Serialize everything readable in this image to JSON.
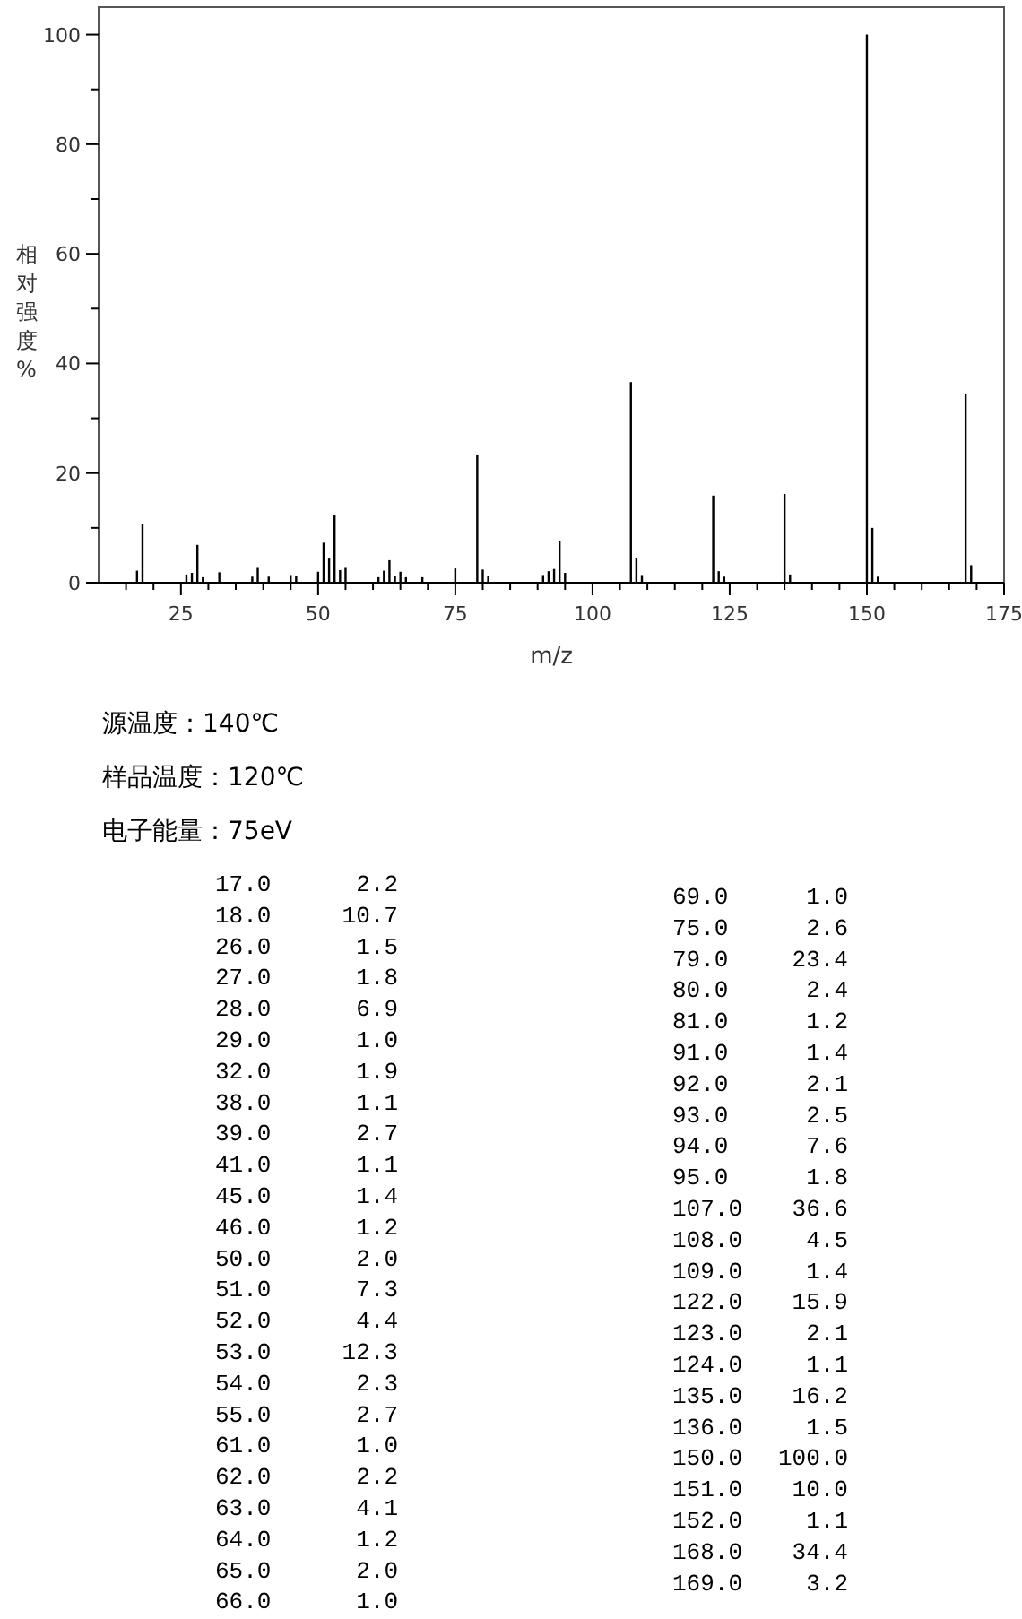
{
  "chart_data": [
    {
      "type": "bar",
      "xlabel": "m/z",
      "ylabel": "相对强度%",
      "xlim": [
        10,
        175
      ],
      "ylim": [
        0,
        105
      ],
      "xticks": [
        {
          "value": 15,
          "label": null
        },
        {
          "value": 20,
          "label": null
        },
        25,
        {
          "value": 30,
          "label": null
        },
        {
          "value": 35,
          "label": null
        },
        {
          "value": 40,
          "label": null
        },
        {
          "value": 45,
          "label": null
        },
        50,
        {
          "value": 55,
          "label": null
        },
        {
          "value": 60,
          "label": null
        },
        {
          "value": 65,
          "label": null
        },
        {
          "value": 70,
          "label": null
        },
        75,
        {
          "value": 80,
          "label": null
        },
        {
          "value": 85,
          "label": null
        },
        {
          "value": 90,
          "label": null
        },
        {
          "value": 95,
          "label": null
        },
        100,
        {
          "value": 105,
          "label": null
        },
        {
          "value": 110,
          "label": null
        },
        {
          "value": 115,
          "label": null
        },
        {
          "value": 120,
          "label": null
        },
        125,
        {
          "value": 130,
          "label": null
        },
        {
          "value": 135,
          "label": null
        },
        {
          "value": 140,
          "label": null
        },
        {
          "value": 145,
          "label": null
        },
        150,
        {
          "value": 155,
          "label": null
        },
        {
          "value": 160,
          "label": null
        },
        {
          "value": 165,
          "label": null
        },
        {
          "value": 170,
          "label": null
        },
        175
      ],
      "yticks": [
        0,
        {
          "value": 10,
          "label": null
        },
        20,
        {
          "value": 30,
          "label": null
        },
        40,
        {
          "value": 50,
          "label": null
        },
        60,
        {
          "value": 70,
          "label": null
        },
        80,
        {
          "value": 90,
          "label": null
        },
        100
      ],
      "color": "#000000",
      "x": [
        17,
        18,
        26,
        27,
        28,
        29,
        32,
        38,
        39,
        41,
        45,
        46,
        50,
        51,
        52,
        53,
        54,
        55,
        61,
        62,
        63,
        64,
        65,
        66,
        69,
        75,
        79,
        80,
        81,
        91,
        92,
        93,
        94,
        95,
        107,
        108,
        109,
        122,
        123,
        124,
        135,
        136,
        150,
        151,
        152,
        168,
        169
      ],
      "values": [
        2.2,
        10.7,
        1.5,
        1.8,
        6.9,
        1.0,
        1.9,
        1.1,
        2.7,
        1.1,
        1.4,
        1.2,
        2.0,
        7.3,
        4.4,
        12.3,
        2.3,
        2.7,
        1.0,
        2.2,
        4.1,
        1.2,
        2.0,
        1.0,
        1.0,
        2.6,
        23.4,
        2.4,
        1.2,
        1.4,
        2.1,
        2.5,
        7.6,
        1.8,
        36.6,
        4.5,
        1.4,
        15.9,
        2.1,
        1.1,
        16.2,
        1.5,
        100.0,
        10.0,
        1.1,
        34.4,
        3.2
      ]
    },
    {
      "type": "other",
      "annotations": [
        "源温度：140℃",
        "样品温度：120℃",
        "电子能量：75eV"
      ],
      "categories": [
        "17.0",
        "18.0",
        "26.0",
        "27.0",
        "28.0",
        "29.0",
        "32.0",
        "38.0",
        "39.0",
        "41.0",
        "45.0",
        "46.0",
        "50.0",
        "51.0",
        "52.0",
        "53.0",
        "54.0",
        "55.0",
        "61.0",
        "62.0",
        "63.0",
        "64.0",
        "65.0",
        "66.0",
        "69.0",
        "75.0",
        "79.0",
        "80.0",
        "81.0",
        "91.0",
        "92.0",
        "93.0",
        "94.0",
        "95.0",
        "107.0",
        "108.0",
        "109.0",
        "122.0",
        "123.0",
        "124.0",
        "135.0",
        "136.0",
        "150.0",
        "151.0",
        "152.0",
        "168.0",
        "169.0"
      ],
      "value_labels": [
        "2.2",
        "10.7",
        "1.5",
        "1.8",
        "6.9",
        "1.0",
        "1.9",
        "1.1",
        "2.7",
        "1.1",
        "1.4",
        "1.2",
        "2.0",
        "7.3",
        "4.4",
        "12.3",
        "2.3",
        "2.7",
        "1.0",
        "2.2",
        "4.1",
        "1.2",
        "2.0",
        "1.0",
        "1.0",
        "2.6",
        "23.4",
        "2.4",
        "1.2",
        "1.4",
        "2.1",
        "2.5",
        "7.6",
        "1.8",
        "36.6",
        "4.5",
        "1.4",
        "15.9",
        "2.1",
        "1.1",
        "16.2",
        "1.5",
        "100.0",
        "10.0",
        "1.1",
        "34.4",
        "3.2"
      ]
    }
  ]
}
